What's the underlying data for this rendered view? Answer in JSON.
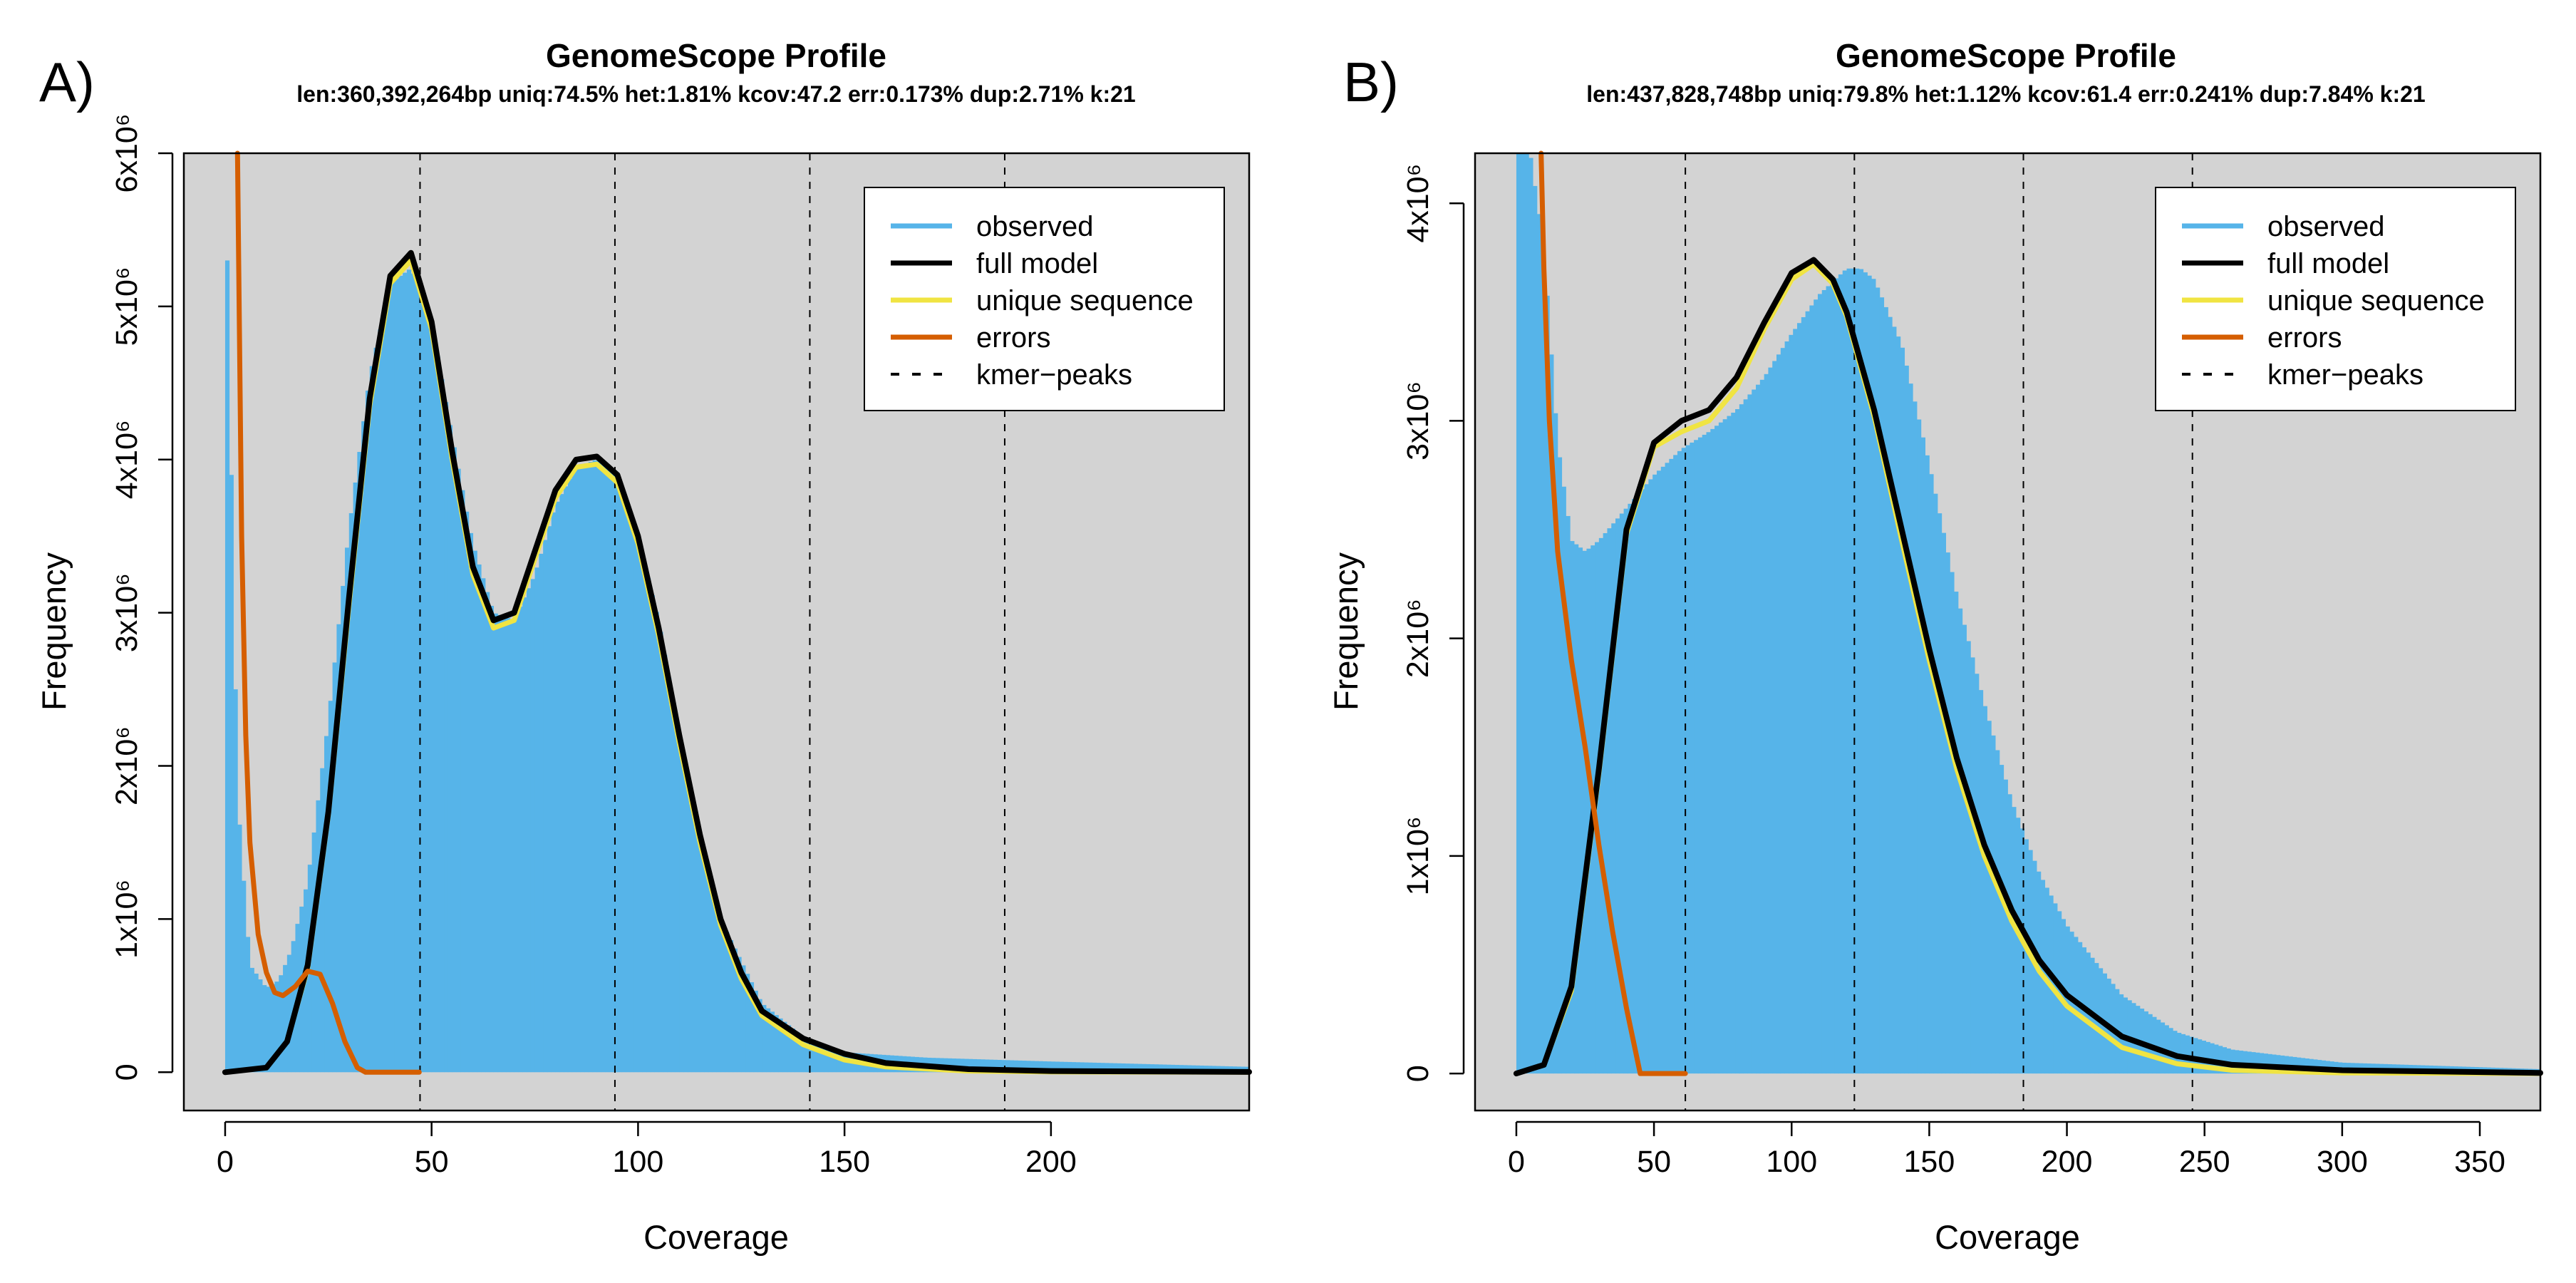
{
  "chart_data": [
    {
      "type": "area",
      "panel_label": "A)",
      "title": "GenomeScope Profile",
      "subtitle": "len:360,392,264bp uniq:74.5%  het:1.81% kcov:47.2 err:0.173%  dup:2.71%  k:21",
      "xlabel": "Coverage",
      "ylabel": "Frequency",
      "xlim": [
        -10,
        248
      ],
      "ylim": [
        -250000,
        6000000
      ],
      "x_ticks": [
        0,
        50,
        100,
        150,
        200
      ],
      "x_tick_labels": [
        "0",
        "50",
        "100",
        "150",
        "200"
      ],
      "y_ticks": [
        0,
        1000000,
        2000000,
        3000000,
        4000000,
        5000000,
        6000000
      ],
      "y_tick_labels": [
        "0",
        "1x10⁶",
        "2x10⁶",
        "3x10⁶",
        "4x10⁶",
        "5x10⁶",
        "6x10⁶"
      ],
      "kmer_peaks": [
        47.2,
        94.4,
        141.6,
        188.8
      ],
      "plot_background": "#d3d3d3",
      "legend": {
        "placement": "top-right",
        "entries": [
          {
            "label": "observed",
            "color": "#56B4E9",
            "style": "solid"
          },
          {
            "label": "full model",
            "color": "#000000",
            "style": "solid"
          },
          {
            "label": "unique sequence",
            "color": "#F0E442",
            "style": "solid"
          },
          {
            "label": "errors",
            "color": "#D55E00",
            "style": "solid"
          },
          {
            "label": "kmer−peaks",
            "color": "#000000",
            "style": "dashed"
          }
        ]
      },
      "series": [
        {
          "name": "observed",
          "color": "#56B4E9",
          "render": "histogram",
          "x": [
            0,
            3,
            6,
            10,
            13,
            16,
            20,
            25,
            30,
            35,
            40,
            45,
            50,
            55,
            60,
            65,
            70,
            75,
            80,
            85,
            90,
            95,
            100,
            105,
            110,
            115,
            120,
            130,
            140,
            150,
            170,
            200,
            248
          ],
          "y": [
            6000000,
            1800000,
            700000,
            550000,
            600000,
            800000,
            1250000,
            2300000,
            3550000,
            4550000,
            5150000,
            5250000,
            4900000,
            4150000,
            3450000,
            3000000,
            2950000,
            3250000,
            3700000,
            3950000,
            4000000,
            3900000,
            3500000,
            2950000,
            2200000,
            1550000,
            1000000,
            450000,
            230000,
            130000,
            95000,
            70000,
            35000
          ]
        },
        {
          "name": "full model",
          "color": "#000000",
          "x": [
            0,
            10,
            15,
            20,
            25,
            30,
            35,
            40,
            45,
            50,
            55,
            60,
            65,
            70,
            75,
            80,
            85,
            90,
            95,
            100,
            105,
            110,
            115,
            120,
            125,
            130,
            140,
            150,
            160,
            180,
            200,
            248
          ],
          "y": [
            0,
            30000,
            200000,
            700000,
            1700000,
            3100000,
            4400000,
            5200000,
            5350000,
            4900000,
            4050000,
            3300000,
            2950000,
            3000000,
            3400000,
            3800000,
            4000000,
            4020000,
            3900000,
            3500000,
            2900000,
            2200000,
            1550000,
            1000000,
            650000,
            400000,
            220000,
            120000,
            60000,
            20000,
            8000,
            2000
          ]
        },
        {
          "name": "unique sequence",
          "color": "#F0E442",
          "x": [
            0,
            10,
            15,
            20,
            25,
            30,
            35,
            40,
            45,
            50,
            55,
            60,
            65,
            70,
            75,
            80,
            85,
            90,
            95,
            100,
            105,
            110,
            115,
            120,
            125,
            130,
            140,
            150,
            160,
            180,
            200,
            248
          ],
          "y": [
            0,
            30000,
            200000,
            680000,
            1680000,
            3050000,
            4350000,
            5150000,
            5300000,
            4850000,
            4000000,
            3250000,
            2900000,
            2950000,
            3350000,
            3750000,
            3950000,
            3970000,
            3850000,
            3450000,
            2850000,
            2150000,
            1500000,
            960000,
            610000,
            370000,
            180000,
            80000,
            35000,
            8000,
            2000,
            500
          ]
        },
        {
          "name": "errors",
          "color": "#D55E00",
          "x": [
            3,
            4,
            5,
            6,
            8,
            10,
            12,
            14,
            17,
            20,
            23,
            26,
            29,
            32,
            34,
            40,
            47
          ],
          "y": [
            6000000,
            3500000,
            2200000,
            1500000,
            900000,
            650000,
            520000,
            500000,
            560000,
            660000,
            640000,
            450000,
            200000,
            30000,
            0,
            0,
            0
          ]
        }
      ]
    },
    {
      "type": "area",
      "panel_label": "B)",
      "title": "GenomeScope Profile",
      "subtitle": "len:437,828,748bp uniq:79.8%  het:1.12% kcov:61.4 err:0.241%  dup:7.84%  k:21",
      "xlabel": "Coverage",
      "ylabel": "Frequency",
      "xlim": [
        -15,
        372
      ],
      "ylim": [
        -170000,
        4230000
      ],
      "x_ticks": [
        0,
        50,
        100,
        150,
        200,
        250,
        300,
        350
      ],
      "x_tick_labels": [
        "0",
        "50",
        "100",
        "150",
        "200",
        "250",
        "300",
        "350"
      ],
      "y_ticks": [
        0,
        1000000,
        2000000,
        3000000,
        4000000
      ],
      "y_tick_labels": [
        "0",
        "1x10⁶",
        "2x10⁶",
        "3x10⁶",
        "4x10⁶"
      ],
      "kmer_peaks": [
        61.4,
        122.8,
        184.2,
        245.6
      ],
      "plot_background": "#d3d3d3",
      "legend": {
        "placement": "top-right",
        "entries": [
          {
            "label": "observed",
            "color": "#56B4E9",
            "style": "solid"
          },
          {
            "label": "full model",
            "color": "#000000",
            "style": "solid"
          },
          {
            "label": "unique sequence",
            "color": "#F0E442",
            "style": "solid"
          },
          {
            "label": "errors",
            "color": "#D55E00",
            "style": "solid"
          },
          {
            "label": "kmer−peaks",
            "color": "#000000",
            "style": "dashed"
          }
        ]
      },
      "series": [
        {
          "name": "observed",
          "color": "#56B4E9",
          "render": "histogram",
          "x": [
            0,
            5,
            10,
            15,
            20,
            25,
            30,
            40,
            50,
            60,
            70,
            80,
            90,
            100,
            110,
            120,
            125,
            130,
            140,
            150,
            160,
            170,
            180,
            190,
            200,
            220,
            240,
            260,
            300,
            372
          ],
          "y": [
            4230000,
            4230000,
            3800000,
            2900000,
            2450000,
            2400000,
            2450000,
            2600000,
            2750000,
            2870000,
            2950000,
            3050000,
            3200000,
            3400000,
            3580000,
            3700000,
            3700000,
            3650000,
            3350000,
            2800000,
            2200000,
            1700000,
            1250000,
            920000,
            680000,
            360000,
            190000,
            110000,
            50000,
            20000
          ]
        },
        {
          "name": "full model",
          "color": "#000000",
          "x": [
            0,
            10,
            20,
            30,
            40,
            50,
            60,
            70,
            80,
            90,
            100,
            108,
            115,
            120,
            130,
            140,
            150,
            160,
            170,
            180,
            190,
            200,
            220,
            240,
            260,
            300,
            372
          ],
          "y": [
            0,
            40000,
            400000,
            1400000,
            2500000,
            2900000,
            3000000,
            3050000,
            3200000,
            3450000,
            3680000,
            3740000,
            3650000,
            3500000,
            3050000,
            2500000,
            1950000,
            1450000,
            1050000,
            750000,
            520000,
            360000,
            170000,
            80000,
            40000,
            15000,
            3000
          ]
        },
        {
          "name": "unique sequence",
          "color": "#F0E442",
          "x": [
            0,
            10,
            20,
            30,
            40,
            50,
            60,
            70,
            80,
            90,
            100,
            108,
            115,
            120,
            130,
            140,
            150,
            160,
            170,
            180,
            190,
            200,
            220,
            240,
            260,
            300,
            372
          ],
          "y": [
            0,
            40000,
            380000,
            1380000,
            2480000,
            2880000,
            2950000,
            3000000,
            3150000,
            3420000,
            3650000,
            3720000,
            3630000,
            3480000,
            3020000,
            2450000,
            1900000,
            1400000,
            1000000,
            700000,
            470000,
            310000,
            120000,
            45000,
            15000,
            3000,
            300
          ]
        },
        {
          "name": "errors",
          "color": "#D55E00",
          "x": [
            9,
            10,
            12,
            15,
            20,
            25,
            30,
            35,
            40,
            45,
            50,
            61.4
          ],
          "y": [
            4230000,
            3700000,
            3000000,
            2400000,
            1900000,
            1500000,
            1050000,
            650000,
            300000,
            0,
            0,
            0
          ]
        }
      ]
    }
  ]
}
